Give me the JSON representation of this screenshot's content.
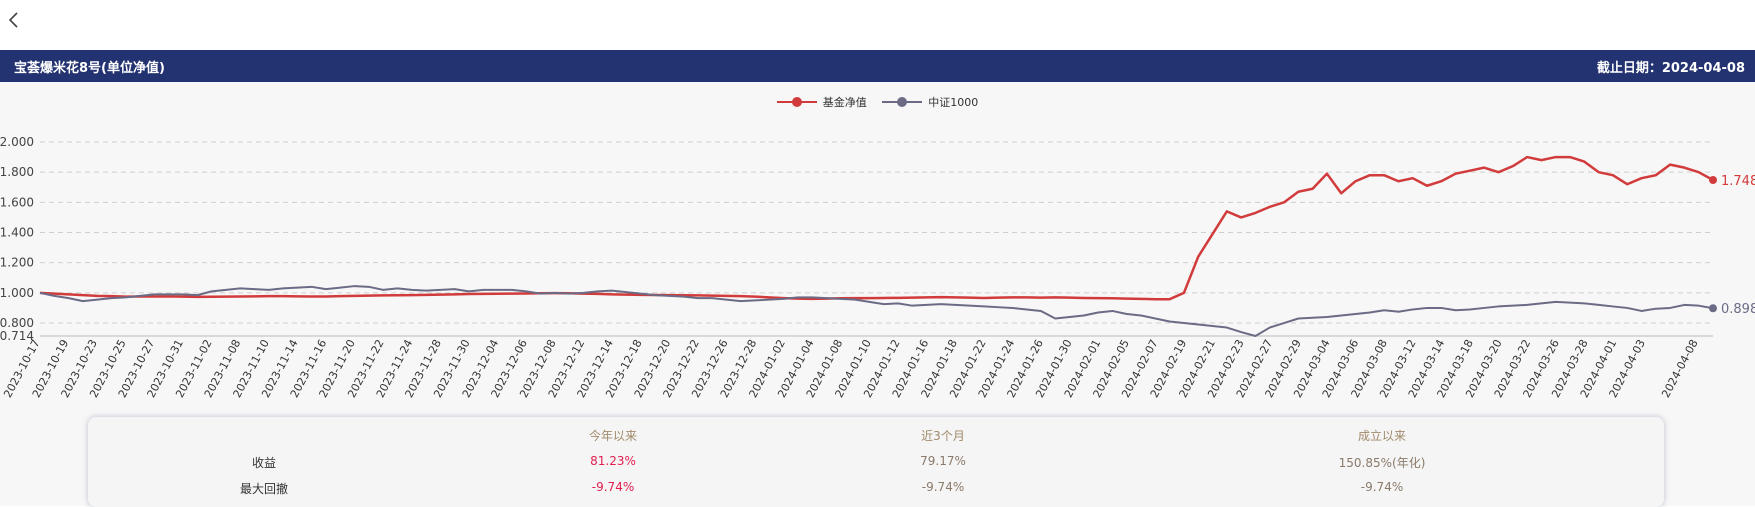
{
  "nav": {
    "back_icon": "chevron-left-icon"
  },
  "header": {
    "title": "宝荟爆米花8号(单位净值)",
    "date_label": "截止日期：2024-04-08"
  },
  "colors": {
    "header_bg": "#233270",
    "fund": "#d23b3b",
    "index": "#6b6b86",
    "stat_red": "#e0204f"
  },
  "legend": [
    {
      "label": "基金净值",
      "color": "#d23b3b"
    },
    {
      "label": "中证1000",
      "color": "#6b6b86"
    }
  ],
  "chart_data": {
    "type": "line",
    "y_ticks": [
      "2.000",
      "1.800",
      "1.600",
      "1.400",
      "1.200",
      "1.000",
      "0.800",
      "0.714"
    ],
    "ylim": [
      0.714,
      2.0
    ],
    "x_labels": [
      "2023-10-17",
      "2023-10-19",
      "2023-10-23",
      "2023-10-25",
      "2023-10-27",
      "2023-10-31",
      "2023-11-02",
      "2023-11-08",
      "2023-11-10",
      "2023-11-14",
      "2023-11-16",
      "2023-11-20",
      "2023-11-22",
      "2023-11-24",
      "2023-11-28",
      "2023-11-30",
      "2023-12-04",
      "2023-12-06",
      "2023-12-08",
      "2023-12-12",
      "2023-12-14",
      "2023-12-18",
      "2023-12-20",
      "2023-12-22",
      "2023-12-26",
      "2023-12-28",
      "2024-01-02",
      "2024-01-04",
      "2024-01-08",
      "2024-01-10",
      "2024-01-12",
      "2024-01-16",
      "2024-01-18",
      "2024-01-22",
      "2024-01-24",
      "2024-01-26",
      "2024-01-30",
      "2024-02-01",
      "2024-02-05",
      "2024-02-07",
      "2024-02-19",
      "2024-02-21",
      "2024-02-23",
      "2024-02-27",
      "2024-02-29",
      "2024-03-04",
      "2024-03-06",
      "2024-03-08",
      "2024-03-12",
      "2024-03-14",
      "2024-03-18",
      "2024-03-20",
      "2024-03-22",
      "2024-03-26",
      "2024-03-28",
      "2024-04-01",
      "2024-04-03",
      "2024-04-08"
    ],
    "grid": true,
    "legend_position": "top-center",
    "series": [
      {
        "name": "基金净值",
        "end_label": "1.748",
        "values": [
          1.0,
          0.995,
          0.99,
          0.985,
          0.98,
          0.978,
          0.975,
          0.976,
          0.976,
          0.977,
          0.975,
          0.973,
          0.974,
          0.975,
          0.976,
          0.977,
          0.978,
          0.978,
          0.977,
          0.976,
          0.976,
          0.978,
          0.98,
          0.982,
          0.983,
          0.984,
          0.985,
          0.987,
          0.988,
          0.99,
          0.992,
          0.993,
          0.994,
          0.995,
          0.996,
          0.997,
          0.998,
          0.997,
          0.995,
          0.993,
          0.99,
          0.988,
          0.987,
          0.986,
          0.985,
          0.984,
          0.983,
          0.982,
          0.98,
          0.978,
          0.975,
          0.97,
          0.965,
          0.962,
          0.96,
          0.962,
          0.964,
          0.965,
          0.965,
          0.966,
          0.967,
          0.968,
          0.97,
          0.972,
          0.97,
          0.968,
          0.966,
          0.968,
          0.97,
          0.97,
          0.968,
          0.97,
          0.968,
          0.966,
          0.965,
          0.964,
          0.962,
          0.96,
          0.958,
          0.958,
          1.0,
          1.24,
          1.39,
          1.54,
          1.5,
          1.53,
          1.57,
          1.6,
          1.67,
          1.69,
          1.79,
          1.66,
          1.74,
          1.78,
          1.78,
          1.74,
          1.76,
          1.71,
          1.74,
          1.79,
          1.81,
          1.83,
          1.8,
          1.84,
          1.9,
          1.88,
          1.9,
          1.9,
          1.87,
          1.8,
          1.78,
          1.72,
          1.76,
          1.78,
          1.85,
          1.83,
          1.8,
          1.748
        ]
      },
      {
        "name": "中证1000",
        "end_label": "0.898",
        "values": [
          1.0,
          0.98,
          0.965,
          0.945,
          0.955,
          0.965,
          0.97,
          0.98,
          0.99,
          0.99,
          0.99,
          0.985,
          1.01,
          1.02,
          1.03,
          1.025,
          1.02,
          1.03,
          1.035,
          1.04,
          1.025,
          1.035,
          1.045,
          1.04,
          1.02,
          1.03,
          1.02,
          1.015,
          1.02,
          1.025,
          1.01,
          1.02,
          1.02,
          1.02,
          1.01,
          0.995,
          1.0,
          0.995,
          1.0,
          1.01,
          1.015,
          1.005,
          0.995,
          0.985,
          0.98,
          0.975,
          0.965,
          0.965,
          0.955,
          0.945,
          0.95,
          0.955,
          0.96,
          0.97,
          0.97,
          0.965,
          0.96,
          0.955,
          0.94,
          0.925,
          0.93,
          0.915,
          0.92,
          0.925,
          0.92,
          0.915,
          0.91,
          0.905,
          0.9,
          0.89,
          0.88,
          0.83,
          0.84,
          0.85,
          0.87,
          0.88,
          0.86,
          0.85,
          0.83,
          0.81,
          0.8,
          0.79,
          0.78,
          0.77,
          0.74,
          0.714,
          0.77,
          0.8,
          0.83,
          0.835,
          0.84,
          0.85,
          0.86,
          0.87,
          0.885,
          0.875,
          0.89,
          0.9,
          0.9,
          0.885,
          0.89,
          0.9,
          0.91,
          0.915,
          0.92,
          0.93,
          0.94,
          0.935,
          0.93,
          0.92,
          0.91,
          0.9,
          0.88,
          0.895,
          0.9,
          0.92,
          0.915,
          0.898
        ]
      }
    ]
  },
  "stats": {
    "columns": [
      "今年以来",
      "近3个月",
      "成立以来"
    ],
    "rows": [
      {
        "label": "收益",
        "values": [
          "81.23%",
          "79.17%",
          "150.85%(年化)"
        ]
      },
      {
        "label": "最大回撤",
        "values": [
          "-9.74%",
          "-9.74%",
          "-9.74%"
        ]
      }
    ]
  }
}
